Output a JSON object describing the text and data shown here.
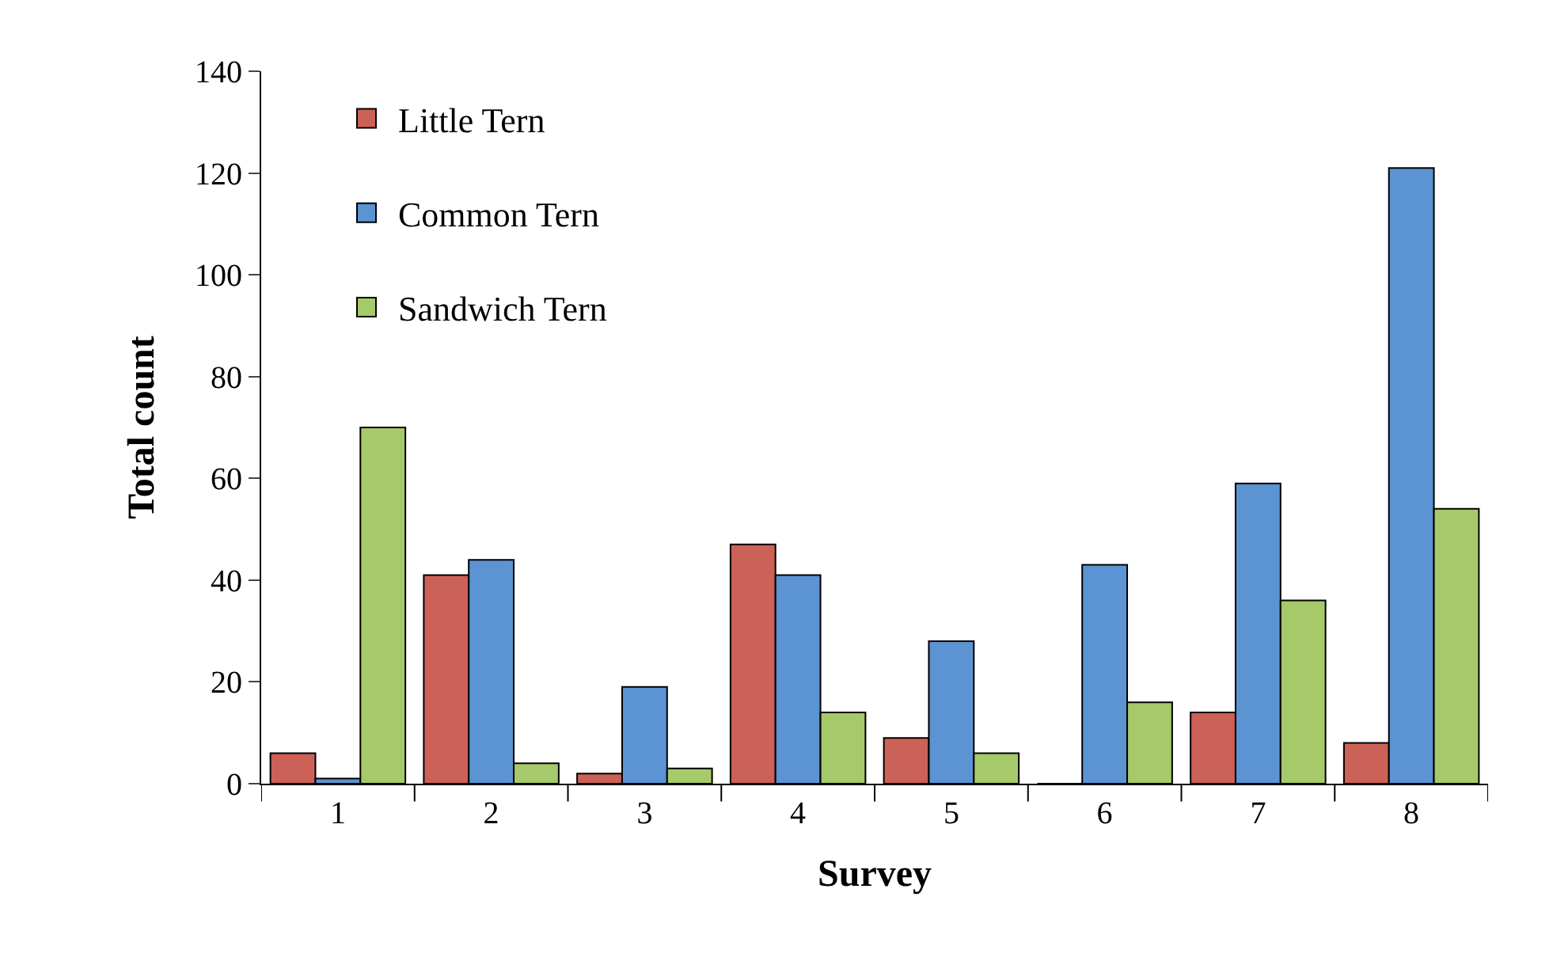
{
  "chart_data": {
    "type": "bar",
    "xlabel": "Survey",
    "ylabel": "Total count",
    "categories": [
      "1",
      "2",
      "3",
      "4",
      "5",
      "6",
      "7",
      "8"
    ],
    "series": [
      {
        "name": "Little Tern",
        "color": "#cc6157",
        "values": [
          6,
          41,
          2,
          47,
          9,
          0,
          14,
          8
        ]
      },
      {
        "name": "Common Tern",
        "color": "#5b93d3",
        "values": [
          1,
          44,
          19,
          41,
          28,
          43,
          59,
          121
        ]
      },
      {
        "name": "Sandwich Tern",
        "color": "#a6c96a",
        "values": [
          70,
          4,
          3,
          14,
          6,
          16,
          36,
          54
        ]
      }
    ],
    "ylim": [
      0,
      140
    ],
    "yticks": [
      0,
      20,
      40,
      60,
      80,
      100,
      120,
      140
    ],
    "grid": false,
    "legend": "top left"
  }
}
